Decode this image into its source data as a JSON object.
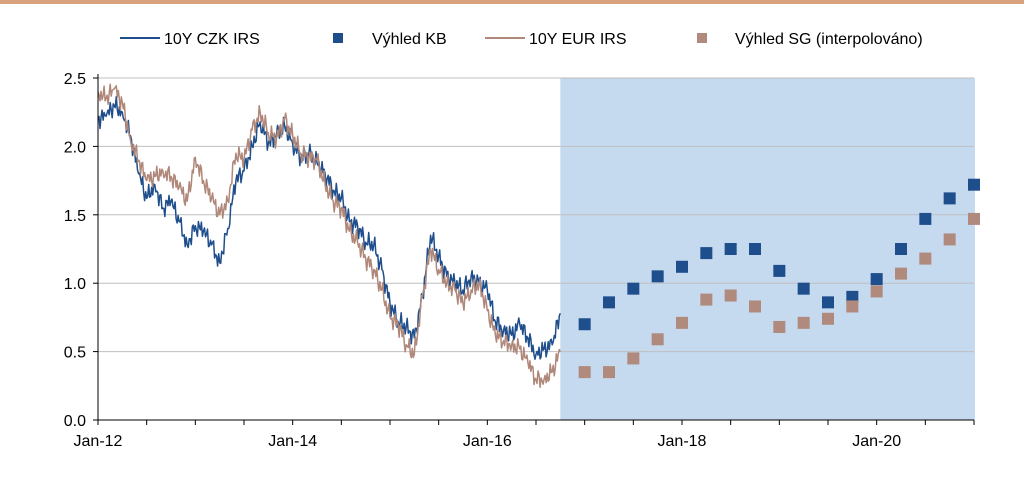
{
  "chart_data": {
    "type": "line",
    "title": "",
    "xlabel": "",
    "ylabel": "",
    "ylim": [
      0,
      2.5
    ],
    "yticks": [
      "0.0",
      "0.5",
      "1.0",
      "1.5",
      "2.0",
      "2.5"
    ],
    "xticks": [
      "Jan-12",
      "Jan-14",
      "Jan-16",
      "Jan-18",
      "Jan-20"
    ],
    "grid": "horizontal",
    "legend_position": "top",
    "forecast_start": "2016-10",
    "colors": {
      "czk": "#1f4e8c",
      "eur": "#b0887a",
      "kb": "#1f4e8c",
      "sg": "#b08a7c",
      "forecast_band": "#c5d9ef",
      "grid": "#bfbfbf",
      "axis": "#000000",
      "rule": "#d9a27f"
    },
    "series": [
      {
        "name": "10Y CZK IRS",
        "kind": "line",
        "points": [
          [
            "2012-01",
            2.2
          ],
          [
            "2012-02",
            2.22
          ],
          [
            "2012-03",
            2.3
          ],
          [
            "2012-04",
            2.25
          ],
          [
            "2012-05",
            2.08
          ],
          [
            "2012-06",
            1.8
          ],
          [
            "2012-07",
            1.62
          ],
          [
            "2012-08",
            1.72
          ],
          [
            "2012-09",
            1.55
          ],
          [
            "2012-10",
            1.6
          ],
          [
            "2012-11",
            1.45
          ],
          [
            "2012-12",
            1.28
          ],
          [
            "2013-01",
            1.42
          ],
          [
            "2013-02",
            1.38
          ],
          [
            "2013-03",
            1.28
          ],
          [
            "2013-04",
            1.15
          ],
          [
            "2013-05",
            1.4
          ],
          [
            "2013-06",
            1.75
          ],
          [
            "2013-07",
            1.82
          ],
          [
            "2013-08",
            2.0
          ],
          [
            "2013-09",
            2.18
          ],
          [
            "2013-10",
            2.02
          ],
          [
            "2013-11",
            2.08
          ],
          [
            "2013-12",
            2.15
          ],
          [
            "2014-01",
            2.02
          ],
          [
            "2014-02",
            1.92
          ],
          [
            "2014-03",
            1.95
          ],
          [
            "2014-04",
            1.88
          ],
          [
            "2014-05",
            1.8
          ],
          [
            "2014-06",
            1.68
          ],
          [
            "2014-07",
            1.62
          ],
          [
            "2014-08",
            1.45
          ],
          [
            "2014-09",
            1.42
          ],
          [
            "2014-10",
            1.3
          ],
          [
            "2014-11",
            1.28
          ],
          [
            "2014-12",
            1.1
          ],
          [
            "2015-01",
            0.85
          ],
          [
            "2015-02",
            0.72
          ],
          [
            "2015-03",
            0.68
          ],
          [
            "2015-04",
            0.6
          ],
          [
            "2015-05",
            0.9
          ],
          [
            "2015-06",
            1.35
          ],
          [
            "2015-07",
            1.2
          ],
          [
            "2015-08",
            1.05
          ],
          [
            "2015-09",
            1.0
          ],
          [
            "2015-10",
            0.95
          ],
          [
            "2015-11",
            1.05
          ],
          [
            "2015-12",
            1.0
          ],
          [
            "2016-01",
            0.95
          ],
          [
            "2016-02",
            0.72
          ],
          [
            "2016-03",
            0.66
          ],
          [
            "2016-04",
            0.62
          ],
          [
            "2016-05",
            0.7
          ],
          [
            "2016-06",
            0.6
          ],
          [
            "2016-07",
            0.48
          ],
          [
            "2016-08",
            0.52
          ],
          [
            "2016-09",
            0.55
          ],
          [
            "2016-10",
            0.78
          ]
        ]
      },
      {
        "name": "10Y EUR IRS",
        "kind": "line",
        "points": [
          [
            "2012-01",
            2.4
          ],
          [
            "2012-02",
            2.35
          ],
          [
            "2012-03",
            2.42
          ],
          [
            "2012-04",
            2.32
          ],
          [
            "2012-05",
            2.05
          ],
          [
            "2012-06",
            1.9
          ],
          [
            "2012-07",
            1.75
          ],
          [
            "2012-08",
            1.78
          ],
          [
            "2012-09",
            1.82
          ],
          [
            "2012-10",
            1.78
          ],
          [
            "2012-11",
            1.7
          ],
          [
            "2012-12",
            1.6
          ],
          [
            "2013-01",
            1.92
          ],
          [
            "2013-02",
            1.75
          ],
          [
            "2013-03",
            1.62
          ],
          [
            "2013-04",
            1.5
          ],
          [
            "2013-05",
            1.6
          ],
          [
            "2013-06",
            1.95
          ],
          [
            "2013-07",
            1.9
          ],
          [
            "2013-08",
            2.12
          ],
          [
            "2013-09",
            2.25
          ],
          [
            "2013-10",
            2.1
          ],
          [
            "2013-11",
            2.05
          ],
          [
            "2013-12",
            2.2
          ],
          [
            "2014-01",
            2.08
          ],
          [
            "2014-02",
            1.95
          ],
          [
            "2014-03",
            1.92
          ],
          [
            "2014-04",
            1.9
          ],
          [
            "2014-05",
            1.72
          ],
          [
            "2014-06",
            1.6
          ],
          [
            "2014-07",
            1.55
          ],
          [
            "2014-08",
            1.38
          ],
          [
            "2014-09",
            1.3
          ],
          [
            "2014-10",
            1.18
          ],
          [
            "2014-11",
            1.1
          ],
          [
            "2014-12",
            0.95
          ],
          [
            "2015-01",
            0.75
          ],
          [
            "2015-02",
            0.7
          ],
          [
            "2015-03",
            0.55
          ],
          [
            "2015-04",
            0.48
          ],
          [
            "2015-05",
            0.9
          ],
          [
            "2015-06",
            1.25
          ],
          [
            "2015-07",
            1.1
          ],
          [
            "2015-08",
            1.0
          ],
          [
            "2015-09",
            0.95
          ],
          [
            "2015-10",
            0.85
          ],
          [
            "2015-11",
            0.95
          ],
          [
            "2015-12",
            1.0
          ],
          [
            "2016-01",
            0.8
          ],
          [
            "2016-02",
            0.62
          ],
          [
            "2016-03",
            0.58
          ],
          [
            "2016-04",
            0.55
          ],
          [
            "2016-05",
            0.52
          ],
          [
            "2016-06",
            0.42
          ],
          [
            "2016-07",
            0.3
          ],
          [
            "2016-08",
            0.3
          ],
          [
            "2016-09",
            0.35
          ],
          [
            "2016-10",
            0.5
          ]
        ]
      },
      {
        "name": "Výhled KB",
        "kind": "markers",
        "points": [
          [
            "2017-01",
            0.7
          ],
          [
            "2017-04",
            0.86
          ],
          [
            "2017-07",
            0.96
          ],
          [
            "2017-10",
            1.05
          ],
          [
            "2018-01",
            1.12
          ],
          [
            "2018-04",
            1.22
          ],
          [
            "2018-07",
            1.25
          ],
          [
            "2018-10",
            1.25
          ],
          [
            "2019-01",
            1.09
          ],
          [
            "2019-04",
            0.96
          ],
          [
            "2019-07",
            0.86
          ],
          [
            "2019-10",
            0.9
          ],
          [
            "2020-01",
            1.03
          ],
          [
            "2020-04",
            1.25
          ],
          [
            "2020-07",
            1.47
          ],
          [
            "2020-10",
            1.62
          ],
          [
            "2021-01",
            1.72
          ]
        ]
      },
      {
        "name": "Výhled SG (interpolováno)",
        "kind": "markers",
        "points": [
          [
            "2017-01",
            0.35
          ],
          [
            "2017-04",
            0.35
          ],
          [
            "2017-07",
            0.45
          ],
          [
            "2017-10",
            0.59
          ],
          [
            "2018-01",
            0.71
          ],
          [
            "2018-04",
            0.88
          ],
          [
            "2018-07",
            0.91
          ],
          [
            "2018-10",
            0.83
          ],
          [
            "2019-01",
            0.68
          ],
          [
            "2019-04",
            0.71
          ],
          [
            "2019-07",
            0.74
          ],
          [
            "2019-10",
            0.83
          ],
          [
            "2020-01",
            0.94
          ],
          [
            "2020-04",
            1.07
          ],
          [
            "2020-07",
            1.18
          ],
          [
            "2020-10",
            1.32
          ],
          [
            "2021-01",
            1.47
          ]
        ]
      }
    ]
  }
}
